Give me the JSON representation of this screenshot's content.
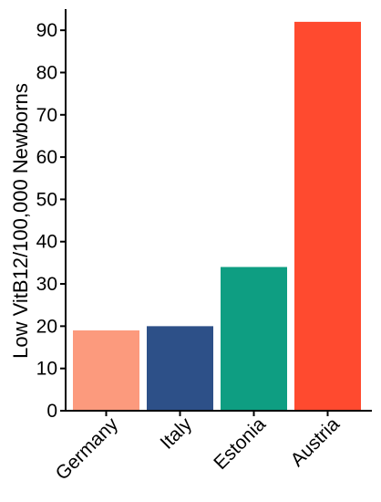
{
  "chart_data": {
    "type": "bar",
    "categories": [
      "Germany",
      "Italy",
      "Estonia",
      "Austria"
    ],
    "values": [
      19,
      20,
      34,
      92
    ],
    "colors": [
      "#FC9A7D",
      "#2D5088",
      "#0E9E82",
      "#FF4A2F"
    ],
    "ylabel": "Low VitB12/100,000 Newborns",
    "xlabel": "",
    "title": "",
    "ylim": [
      0,
      95
    ],
    "yticks": [
      0,
      10,
      20,
      30,
      40,
      50,
      60,
      70,
      80,
      90
    ],
    "grid": false,
    "legend": "none"
  }
}
